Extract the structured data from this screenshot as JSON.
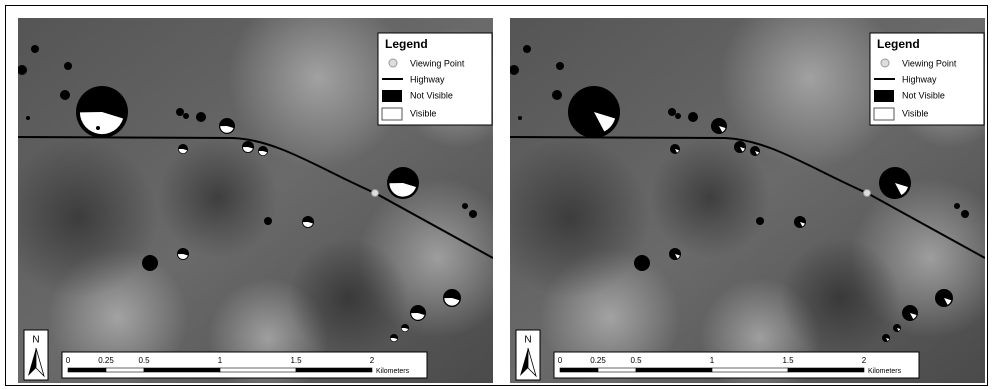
{
  "panels": [
    {
      "legend": {
        "title": "Legend",
        "items": [
          "Viewing Point",
          "Highway",
          "Not Visible",
          "Visible"
        ]
      },
      "north": "N",
      "scale": {
        "labels": [
          "0",
          "0.25",
          "0.5",
          "1",
          "1.5",
          "2"
        ],
        "unit": "Kilometers"
      }
    },
    {
      "legend": {
        "title": "Legend",
        "items": [
          "Viewing Point",
          "Highway",
          "Not Visible",
          "Visible"
        ]
      },
      "north": "N",
      "scale": {
        "labels": [
          "0",
          "0.25",
          "0.5",
          "1",
          "1.5",
          "2"
        ],
        "unit": "Kilometers"
      }
    }
  ]
}
